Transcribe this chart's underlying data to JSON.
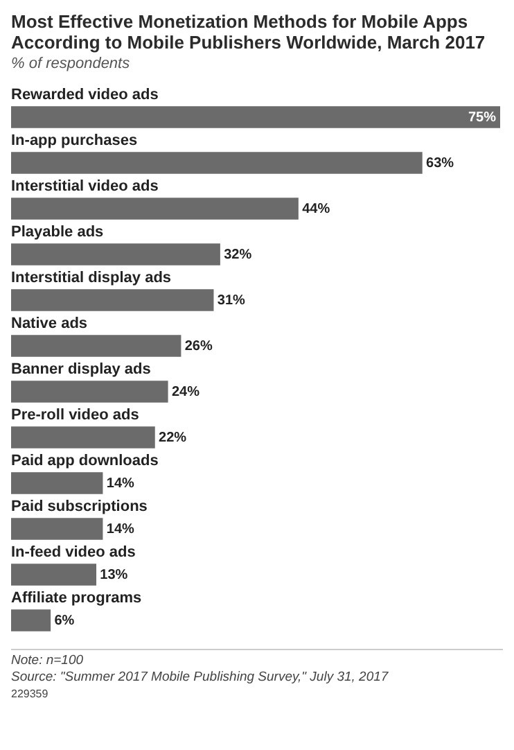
{
  "chart_data": {
    "type": "bar",
    "orientation": "horizontal",
    "title": "Most Effective Monetization Methods for Mobile Apps According to Mobile Publishers Worldwide, March 2017",
    "subtitle": "% of respondents",
    "categories": [
      "Rewarded video ads",
      "In-app purchases",
      "Interstitial video ads",
      "Playable ads",
      "Interstitial display ads",
      "Native ads",
      "Banner display ads",
      "Pre-roll video ads",
      "Paid app downloads",
      "Paid subscriptions",
      "In-feed video ads",
      "Affiliate programs"
    ],
    "values": [
      75,
      63,
      44,
      32,
      31,
      26,
      24,
      22,
      14,
      14,
      13,
      6
    ],
    "value_labels": [
      "75%",
      "63%",
      "44%",
      "32%",
      "31%",
      "26%",
      "24%",
      "22%",
      "14%",
      "14%",
      "13%",
      "6%"
    ],
    "color": "#6b6b6b",
    "legend": false,
    "annotations": [
      "Note: n=100",
      "Source: \"Summer 2017 Mobile Publishing Survey,\" July 31, 2017",
      "229359"
    ]
  }
}
